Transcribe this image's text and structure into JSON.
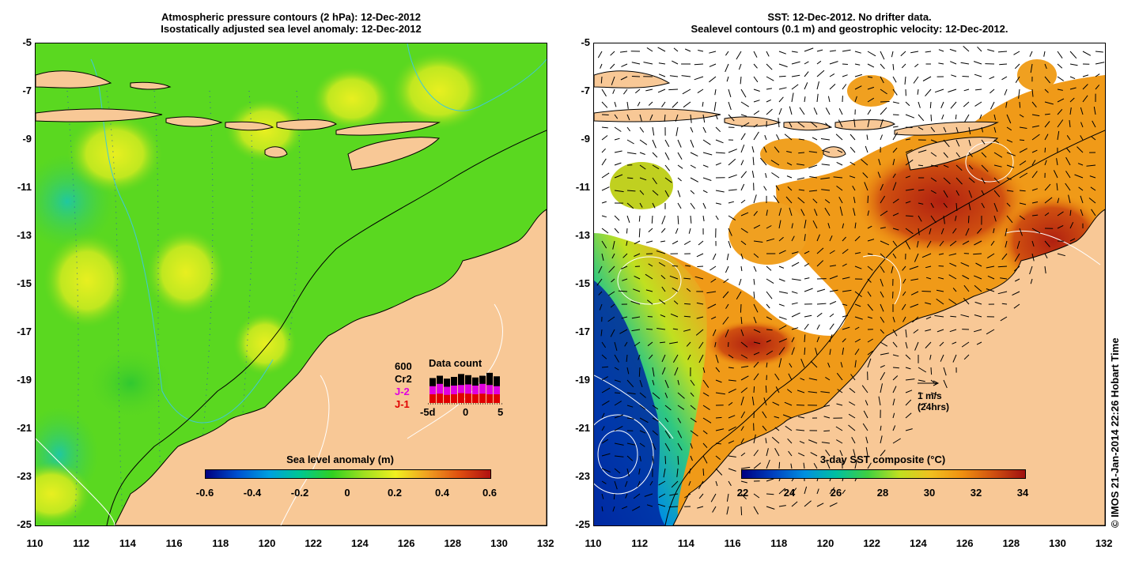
{
  "left_panel": {
    "title_line1": "Atmospheric pressure contours (2 hPa): 12-Dec-2012",
    "title_line2": "Isostatically adjusted sea level anomaly: 12-Dec-2012",
    "colorbar": {
      "label": "Sea level anomaly (m)",
      "ticks": [
        "-0.6",
        "-0.4",
        "-0.2",
        "0",
        "0.2",
        "0.4",
        "0.6"
      ],
      "range": [
        -0.6,
        0.6
      ]
    },
    "data_count": {
      "title": "Data count",
      "max_label": "600",
      "legend": [
        {
          "name": "Cr2",
          "color": "#000000"
        },
        {
          "name": "J-2",
          "color": "#e000e0"
        },
        {
          "name": "J-1",
          "color": "#e00000"
        }
      ],
      "x_ticks": [
        "-5d",
        "0",
        "5"
      ],
      "bars": [
        {
          "cr2": 430,
          "j2": 290,
          "j1": 150
        },
        {
          "cr2": 470,
          "j2": 330,
          "j1": 160
        },
        {
          "cr2": 420,
          "j2": 280,
          "j1": 140
        },
        {
          "cr2": 450,
          "j2": 300,
          "j1": 150
        },
        {
          "cr2": 500,
          "j2": 310,
          "j1": 170
        },
        {
          "cr2": 480,
          "j2": 320,
          "j1": 160
        },
        {
          "cr2": 440,
          "j2": 300,
          "j1": 150
        },
        {
          "cr2": 470,
          "j2": 330,
          "j1": 160
        },
        {
          "cr2": 520,
          "j2": 310,
          "j1": 150
        },
        {
          "cr2": 460,
          "j2": 290,
          "j1": 150
        }
      ]
    }
  },
  "right_panel": {
    "title_line1": "SST: 12-Dec-2012. No drifter data.",
    "title_line2": "Sealevel contours (0.1 m) and geostrophic velocity: 12-Dec-2012.",
    "colorbar": {
      "label": "3-day SST composite (°C)",
      "ticks": [
        "22",
        "24",
        "26",
        "28",
        "30",
        "32",
        "34"
      ],
      "range": [
        22,
        34
      ]
    },
    "velocity_scale": {
      "label": "1 m/s",
      "sublabel": "(24hrs)"
    }
  },
  "axes": {
    "y_ticks": [
      "-5",
      "-7",
      "-9",
      "-11",
      "-13",
      "-15",
      "-17",
      "-19",
      "-21",
      "-23",
      "-25"
    ],
    "x_ticks": [
      "110",
      "112",
      "114",
      "116",
      "118",
      "120",
      "122",
      "124",
      "126",
      "128",
      "130",
      "132"
    ],
    "lon_range": [
      110,
      132
    ],
    "lat_range": [
      -5,
      -25
    ]
  },
  "copyright": "© IMOS 21-Jan-2014 22:26 Hobart Time",
  "colors": {
    "land": "#f8c896",
    "sla_scale": [
      "#000080",
      "#0050d0",
      "#00a0e0",
      "#00c890",
      "#30d020",
      "#a0e020",
      "#f0f020",
      "#f0a020",
      "#e05010",
      "#b01010"
    ],
    "sst_scale": [
      "#000080",
      "#0040c0",
      "#0090e0",
      "#00c0a0",
      "#40d040",
      "#c0e020",
      "#f0c020",
      "#f09010",
      "#d05010",
      "#a01010"
    ]
  }
}
